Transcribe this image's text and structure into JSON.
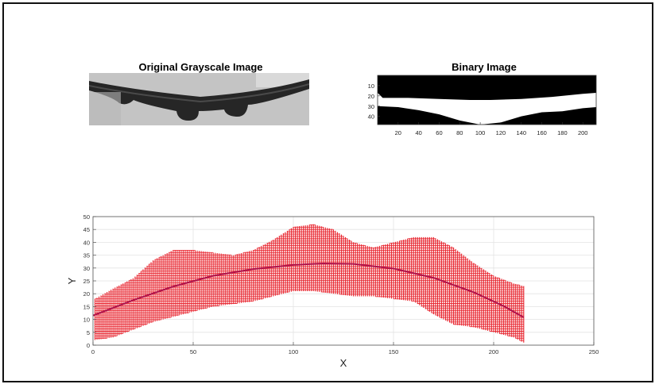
{
  "figure": {
    "original_title": "Original Grayscale Image",
    "binary_title": "Binary Image"
  },
  "chart_data": [
    {
      "type": "image",
      "title": "Original Grayscale Image",
      "description_colors": {
        "background": "#c8c8c8",
        "object": "#2a2a2a"
      }
    },
    {
      "type": "heatmap",
      "title": "Binary Image",
      "xticks": [
        20,
        40,
        60,
        80,
        100,
        120,
        140,
        160,
        180,
        200
      ],
      "yticks": [
        10,
        20,
        30,
        40
      ],
      "xlim": [
        0,
        213
      ],
      "ylim": [
        0,
        48
      ],
      "upper_boundary": [
        [
          0,
          17
        ],
        [
          5,
          22
        ],
        [
          30,
          22
        ],
        [
          60,
          23
        ],
        [
          90,
          24
        ],
        [
          110,
          24
        ],
        [
          140,
          23
        ],
        [
          170,
          21
        ],
        [
          200,
          18
        ],
        [
          213,
          17
        ]
      ],
      "lower_boundary": [
        [
          0,
          30
        ],
        [
          20,
          31
        ],
        [
          40,
          34
        ],
        [
          60,
          38
        ],
        [
          80,
          44
        ],
        [
          100,
          48
        ],
        [
          120,
          46
        ],
        [
          140,
          40
        ],
        [
          160,
          36
        ],
        [
          180,
          35
        ],
        [
          200,
          32
        ],
        [
          213,
          31
        ]
      ],
      "colors": {
        "on": "#ffffff",
        "off": "#000000"
      }
    },
    {
      "type": "scatter",
      "xlabel": "X",
      "ylabel": "Y",
      "xlim": [
        0,
        250
      ],
      "ylim": [
        0,
        50
      ],
      "xticks": [
        0,
        50,
        100,
        150,
        200,
        250
      ],
      "yticks": [
        0,
        5,
        10,
        15,
        20,
        25,
        30,
        35,
        40,
        45,
        50
      ],
      "grid": true,
      "marker_color": "#e8202a",
      "region_upper": [
        [
          1,
          18
        ],
        [
          10,
          22
        ],
        [
          20,
          26
        ],
        [
          30,
          33
        ],
        [
          40,
          37
        ],
        [
          50,
          37
        ],
        [
          60,
          36
        ],
        [
          70,
          35
        ],
        [
          80,
          37
        ],
        [
          90,
          41
        ],
        [
          100,
          46
        ],
        [
          110,
          47
        ],
        [
          120,
          45
        ],
        [
          130,
          40
        ],
        [
          140,
          38
        ],
        [
          150,
          40
        ],
        [
          160,
          42
        ],
        [
          170,
          42
        ],
        [
          180,
          38
        ],
        [
          190,
          32
        ],
        [
          200,
          27
        ],
        [
          210,
          24
        ],
        [
          215,
          23
        ]
      ],
      "region_lower": [
        [
          1,
          2
        ],
        [
          10,
          3
        ],
        [
          20,
          6
        ],
        [
          30,
          9
        ],
        [
          40,
          11
        ],
        [
          50,
          13
        ],
        [
          60,
          15
        ],
        [
          70,
          16
        ],
        [
          80,
          17
        ],
        [
          90,
          19
        ],
        [
          100,
          21
        ],
        [
          110,
          21
        ],
        [
          120,
          20
        ],
        [
          130,
          19
        ],
        [
          140,
          19
        ],
        [
          150,
          18
        ],
        [
          160,
          17
        ],
        [
          170,
          12
        ],
        [
          180,
          8
        ],
        [
          190,
          7
        ],
        [
          200,
          5
        ],
        [
          210,
          3
        ],
        [
          215,
          1
        ]
      ],
      "fit_line": [
        [
          0,
          11.5
        ],
        [
          20,
          17.5
        ],
        [
          40,
          22.8
        ],
        [
          60,
          27
        ],
        [
          80,
          29.6
        ],
        [
          100,
          31.2
        ],
        [
          115,
          31.8
        ],
        [
          130,
          31.6
        ],
        [
          150,
          29.8
        ],
        [
          170,
          26.2
        ],
        [
          190,
          20.6
        ],
        [
          205,
          15.2
        ],
        [
          215,
          10.8
        ]
      ],
      "fit_color": "#b0124a"
    }
  ]
}
